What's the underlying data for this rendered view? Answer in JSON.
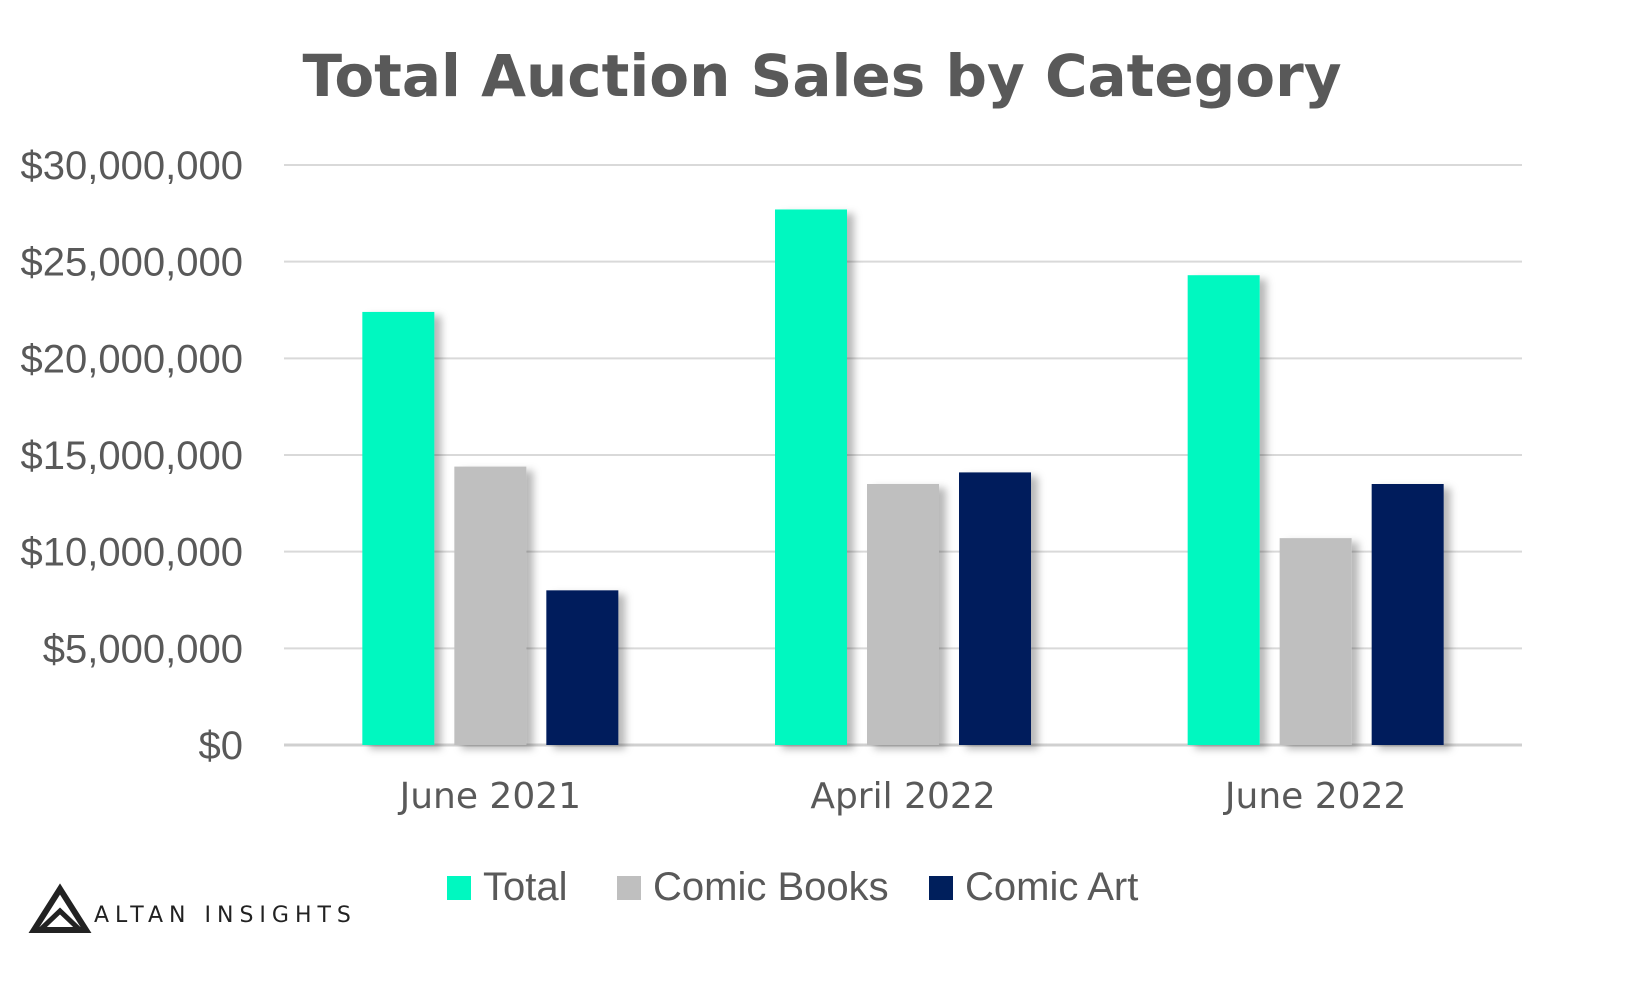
{
  "chart_data": {
    "type": "bar",
    "title": "Total Auction Sales by Category",
    "categories": [
      "June 2021",
      "April 2022",
      "June 2022"
    ],
    "series": [
      {
        "name": "Total",
        "values": [
          22400000,
          27700000,
          24300000
        ],
        "color": "#00F8C0"
      },
      {
        "name": "Comic Books",
        "values": [
          14400000,
          13500000,
          10700000
        ],
        "color": "#BFBFBF"
      },
      {
        "name": "Comic Art",
        "values": [
          8000000,
          14100000,
          13500000
        ],
        "color": "#001F5C"
      }
    ],
    "yticks": [
      "$0",
      "$5,000,000",
      "$10,000,000",
      "$15,000,000",
      "$20,000,000",
      "$25,000,000",
      "$30,000,000"
    ],
    "ylim": [
      0,
      30000000
    ],
    "grid": true,
    "legend_position": "bottom"
  },
  "branding": {
    "name": "ALTAN INSIGHTS",
    "logo_icon": "altan-triangle-logo-icon"
  }
}
